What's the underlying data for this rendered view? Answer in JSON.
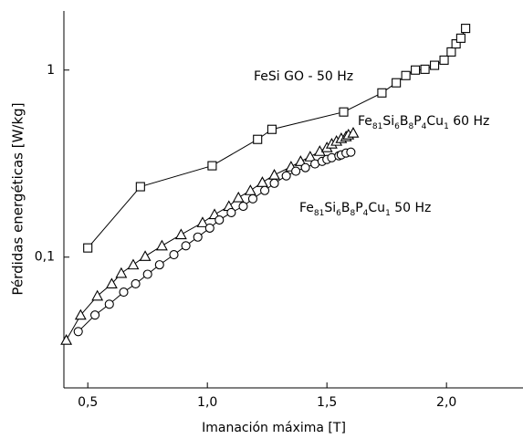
{
  "chart_data": {
    "type": "line",
    "x_label": "Imanación máxima [T]",
    "y_label": "Pérdidas energéticas [W/kg]",
    "xlim": [
      0.4,
      2.32
    ],
    "xticks": [
      {
        "value": 0.5,
        "label": "0,5"
      },
      {
        "value": 1.0,
        "label": "1,0"
      },
      {
        "value": 1.5,
        "label": "1,5"
      },
      {
        "value": 2.0,
        "label": "2,0"
      }
    ],
    "ylim": [
      0.02,
      2.07
    ],
    "yticks": [
      {
        "value": 0.1,
        "label": "0,1"
      },
      1
    ],
    "log_y": true,
    "series": [
      {
        "name": "FeSi GO - 50 Hz",
        "color": "#000000",
        "marker": "square",
        "x": [
          0.5,
          0.72,
          1.02,
          1.21,
          1.27,
          1.57,
          1.73,
          1.79,
          1.83,
          1.87,
          1.91,
          1.95,
          1.99,
          2.02,
          2.04,
          2.06,
          2.08
        ],
        "values": [
          0.112,
          0.238,
          0.308,
          0.426,
          0.482,
          0.597,
          0.755,
          0.855,
          0.935,
          1.0,
          1.01,
          1.06,
          1.13,
          1.25,
          1.38,
          1.48,
          1.67
        ]
      },
      {
        "name": "Fe81Si6B8P4Cu1 60 Hz",
        "color": "#000000",
        "marker": "triangle",
        "x": [
          0.41,
          0.47,
          0.54,
          0.6,
          0.64,
          0.69,
          0.74,
          0.81,
          0.89,
          0.98,
          1.03,
          1.09,
          1.13,
          1.18,
          1.23,
          1.28,
          1.35,
          1.39,
          1.43,
          1.47,
          1.5,
          1.52,
          1.54,
          1.56,
          1.58,
          1.59,
          1.61
        ],
        "values": [
          0.036,
          0.049,
          0.062,
          0.072,
          0.082,
          0.091,
          0.101,
          0.115,
          0.132,
          0.153,
          0.169,
          0.187,
          0.208,
          0.227,
          0.251,
          0.275,
          0.304,
          0.325,
          0.344,
          0.368,
          0.385,
          0.403,
          0.417,
          0.431,
          0.441,
          0.451,
          0.461
        ]
      },
      {
        "name": "Fe81Si6B8P4Cu1 50 Hz",
        "color": "#000000",
        "marker": "circle",
        "x": [
          0.46,
          0.53,
          0.59,
          0.65,
          0.7,
          0.75,
          0.8,
          0.86,
          0.91,
          0.96,
          1.01,
          1.05,
          1.1,
          1.15,
          1.19,
          1.24,
          1.28,
          1.33,
          1.37,
          1.41,
          1.45,
          1.48,
          1.5,
          1.52,
          1.55,
          1.56,
          1.58,
          1.6
        ],
        "values": [
          0.04,
          0.049,
          0.056,
          0.065,
          0.072,
          0.081,
          0.091,
          0.103,
          0.115,
          0.128,
          0.143,
          0.158,
          0.173,
          0.187,
          0.205,
          0.227,
          0.248,
          0.272,
          0.288,
          0.301,
          0.315,
          0.325,
          0.333,
          0.34,
          0.348,
          0.352,
          0.36,
          0.364
        ]
      }
    ]
  }
}
